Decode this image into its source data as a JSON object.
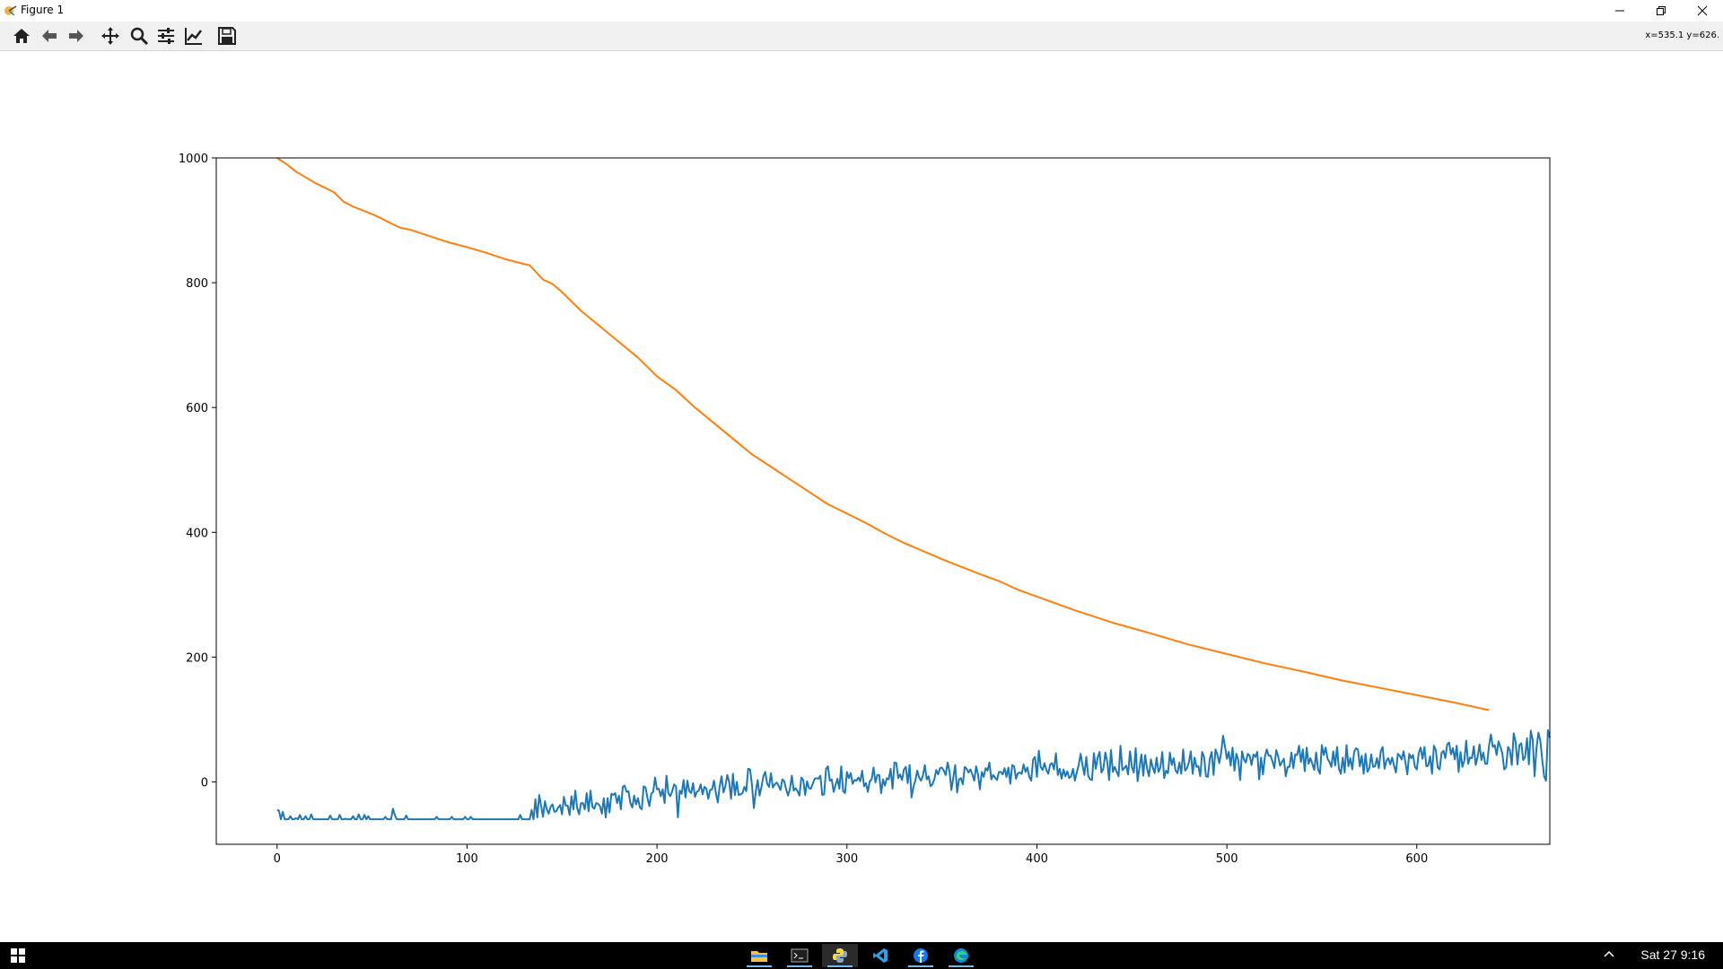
{
  "window": {
    "title": "Figure 1",
    "coords_readout": "x=535.1 y=626."
  },
  "toolbar": {
    "tools": [
      "home-icon",
      "back-icon",
      "forward-icon",
      "pan-icon",
      "zoom-icon",
      "configure-subplots-icon",
      "edit-axis-icon",
      "save-icon"
    ]
  },
  "taskbar": {
    "clock": "Sat 27  9:16",
    "apps": [
      "file-explorer-icon",
      "terminal-icon",
      "python-icon",
      "vscode-icon",
      "facebook-icon",
      "edge-icon"
    ]
  },
  "colors": {
    "series_orange": "#ff7f0e",
    "series_blue": "#1f77b4",
    "taskbar_accent": "#76b9ed"
  },
  "chart_data": {
    "type": "line",
    "title": "",
    "xlabel": "",
    "ylabel": "",
    "xlim": [
      -32,
      670
    ],
    "ylim": [
      -100,
      1000
    ],
    "xticks": [
      0,
      100,
      200,
      300,
      400,
      500,
      600
    ],
    "yticks": [
      0,
      200,
      400,
      600,
      800,
      1000
    ],
    "grid": false,
    "legend": "none",
    "series": [
      {
        "color": "#ff7f0e",
        "x": [
          0,
          5,
          10,
          20,
          30,
          35,
          40,
          50,
          55,
          60,
          65,
          70,
          80,
          90,
          100,
          110,
          120,
          130,
          133,
          140,
          145,
          150,
          155,
          160,
          170,
          180,
          190,
          200,
          210,
          220,
          230,
          240,
          250,
          260,
          270,
          280,
          290,
          300,
          310,
          320,
          330,
          340,
          350,
          360,
          370,
          380,
          390,
          400,
          420,
          440,
          460,
          480,
          500,
          520,
          540,
          560,
          580,
          600,
          620,
          638
        ],
        "y": [
          1000,
          990,
          978,
          960,
          945,
          930,
          922,
          910,
          903,
          895,
          888,
          885,
          875,
          865,
          857,
          848,
          838,
          830,
          828,
          805,
          798,
          785,
          770,
          755,
          730,
          705,
          680,
          650,
          628,
          600,
          575,
          550,
          525,
          505,
          485,
          465,
          445,
          430,
          415,
          398,
          383,
          370,
          357,
          345,
          333,
          322,
          308,
          297,
          275,
          255,
          238,
          220,
          205,
          190,
          177,
          163,
          151,
          139,
          127,
          115
        ]
      },
      {
        "color": "#1f77b4",
        "x_start": 0,
        "x_step": 1,
        "y": [
          -45,
          -46,
          -60,
          -48,
          -60,
          -60,
          -60,
          -55,
          -60,
          -60,
          -58,
          -60,
          -53,
          -60,
          -60,
          -55,
          -60,
          -60,
          -52,
          -60,
          -60,
          -60,
          -60,
          -60,
          -60,
          -60,
          -60,
          -60,
          -54,
          -60,
          -60,
          -60,
          -60,
          -53,
          -60,
          -60,
          -59,
          -60,
          -60,
          -60,
          -55,
          -60,
          -60,
          -52,
          -60,
          -60,
          -53,
          -60,
          -55,
          -60,
          -60,
          -60,
          -60,
          -60,
          -60,
          -60,
          -60,
          -56,
          -60,
          -60,
          -60,
          -43,
          -53,
          -60,
          -60,
          -60,
          -60,
          -60,
          -54,
          -60,
          -60,
          -60,
          -60,
          -60,
          -60,
          -60,
          -60,
          -60,
          -60,
          -60,
          -60,
          -60,
          -60,
          -60,
          -56,
          -60,
          -60,
          -60,
          -60,
          -60,
          -60,
          -60,
          -56,
          -60,
          -60,
          -60,
          -60,
          -60,
          -60,
          -56,
          -60,
          -60,
          -56,
          -60,
          -60,
          -60,
          -60,
          -60,
          -60,
          -60,
          -60,
          -60,
          -60,
          -60,
          -60,
          -60,
          -60,
          -60,
          -60,
          -60,
          -60,
          -60,
          -60,
          -60,
          -60,
          -60,
          -60,
          -60,
          -53,
          -60,
          -60,
          -60,
          -60,
          -60,
          -45,
          -60,
          -28,
          -57,
          -21,
          -38,
          -56,
          -31,
          -44,
          -51,
          -40,
          -36,
          -48,
          -47,
          -41,
          -37,
          -52,
          -24,
          -38,
          -38,
          -53,
          -23,
          -44,
          -14,
          -42,
          -52,
          -34,
          -34,
          -44,
          -18,
          -47,
          -14,
          -40,
          -43,
          -34,
          -35,
          -39,
          -51,
          -26,
          -57,
          -26,
          -49,
          -19,
          -21,
          -18,
          -34,
          -22,
          -44,
          -8,
          -6,
          -16,
          -15,
          -34,
          -41,
          -22,
          -36,
          -26,
          -41,
          -44,
          -7,
          -9,
          -26,
          -39,
          -19,
          -16,
          7,
          -12,
          -11,
          -23,
          -12,
          -34,
          10,
          -18,
          -23,
          -15,
          -4,
          -7,
          -57,
          -14,
          -19,
          3,
          -25,
          2,
          -15,
          -18,
          -2,
          -24,
          -16,
          -14,
          -4,
          -20,
          -8,
          -11,
          -27,
          -13,
          -12,
          2,
          -18,
          -33,
          -7,
          9,
          -17,
          -7,
          11,
          0,
          -27,
          13,
          -21,
          0,
          -21,
          -20,
          -18,
          -8,
          -15,
          21,
          20,
          -5,
          -42,
          -16,
          3,
          -22,
          -8,
          9,
          16,
          -3,
          -8,
          14,
          -9,
          -4,
          -1,
          -6,
          -13,
          4,
          1,
          -12,
          -22,
          -11,
          10,
          -14,
          -10,
          -15,
          -22,
          7,
          3,
          -21,
          1,
          -10,
          -11,
          -3,
          5,
          6,
          5,
          10,
          -21,
          -20,
          21,
          25,
          2,
          4,
          -16,
          -5,
          5,
          -11,
          25,
          -15,
          -18,
          16,
          6,
          14,
          -3,
          3,
          2,
          7,
          1,
          18,
          -7,
          -2,
          -16,
          1,
          4,
          23,
          -1,
          11,
          11,
          -18,
          4,
          -6,
          6,
          4,
          21,
          -11,
          31,
          30,
          6,
          12,
          3,
          20,
          24,
          -2,
          27,
          -25,
          -8,
          2,
          18,
          7,
          2,
          10,
          27,
          4,
          9,
          -7,
          -4,
          4,
          19,
          12,
          22,
          23,
          18,
          11,
          31,
          17,
          -13,
          7,
          27,
          -17,
          4,
          6,
          -4,
          24,
          21,
          15,
          20,
          12,
          2,
          25,
          12,
          -12,
          16,
          8,
          22,
          18,
          31,
          4,
          11,
          7,
          3,
          16,
          16,
          12,
          22,
          8,
          23,
          -3,
          27,
          25,
          5,
          14,
          15,
          13,
          28,
          16,
          23,
          8,
          2,
          36,
          40,
          8,
          50,
          24,
          19,
          30,
          19,
          13,
          28,
          30,
          20,
          46,
          11,
          21,
          5,
          20,
          9,
          17,
          6,
          9,
          21,
          2,
          15,
          27,
          45,
          27,
          11,
          40,
          10,
          4,
          3,
          46,
          21,
          39,
          48,
          15,
          21,
          47,
          33,
          3,
          51,
          16,
          24,
          16,
          9,
          58,
          19,
          22,
          26,
          12,
          49,
          24,
          15,
          54,
          1,
          23,
          44,
          10,
          43,
          21,
          9,
          36,
          23,
          14,
          39,
          16,
          23,
          48,
          6,
          18,
          14,
          47,
          27,
          38,
          18,
          14,
          31,
          13,
          52,
          18,
          22,
          31,
          49,
          13,
          39,
          24,
          25,
          9,
          48,
          40,
          9,
          8,
          37,
          48,
          11,
          52,
          44,
          30,
          47,
          74,
          57,
          37,
          48,
          26,
          55,
          18,
          45,
          35,
          3,
          49,
          36,
          31,
          45,
          42,
          27,
          44,
          40,
          48,
          4,
          39,
          12,
          40,
          52,
          42,
          42,
          33,
          22,
          51,
          41,
          26,
          32,
          37,
          9,
          24,
          24,
          47,
          22,
          44,
          43,
          58,
          32,
          52,
          17,
          55,
          29,
          38,
          29,
          19,
          47,
          20,
          13,
          59,
          43,
          55,
          37,
          32,
          24,
          49,
          26,
          56,
          21,
          13,
          39,
          15,
          59,
          25,
          38,
          20,
          48,
          54,
          52,
          25,
          42,
          13,
          45,
          16,
          22,
          44,
          24,
          25,
          38,
          22,
          49,
          56,
          21,
          34,
          38,
          28,
          39,
          26,
          15,
          45,
          42,
          36,
          49,
          31,
          12,
          45,
          38,
          43,
          24,
          20,
          46,
          55,
          37,
          56,
          25,
          26,
          41,
          13,
          58,
          51,
          23,
          20,
          46,
          50,
          38,
          60,
          63,
          44,
          54,
          36,
          58,
          16,
          48,
          24,
          34,
          66,
          29,
          39,
          38,
          57,
          27,
          40,
          60,
          35,
          47,
          29,
          29,
          58,
          76,
          56,
          59,
          43,
          65,
          56,
          46,
          20,
          23,
          56,
          51,
          27,
          78,
          64,
          28,
          59,
          62,
          35,
          40,
          70,
          28,
          82,
          67,
          9,
          54,
          79,
          66,
          36,
          9,
          2,
          83,
          71
        ]
      }
    ]
  }
}
